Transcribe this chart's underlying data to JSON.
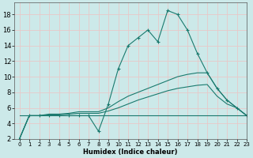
{
  "title": "",
  "xlabel": "Humidex (Indice chaleur)",
  "ylabel": "",
  "background_color": "#cce9e9",
  "grid_color": "#e8c8c8",
  "line_color": "#1a7a6e",
  "xlim": [
    -0.5,
    23
  ],
  "ylim": [
    2,
    19.5
  ],
  "yticks": [
    2,
    4,
    6,
    8,
    10,
    12,
    14,
    16,
    18
  ],
  "xticks": [
    0,
    1,
    2,
    3,
    4,
    5,
    6,
    7,
    8,
    9,
    10,
    11,
    12,
    13,
    14,
    15,
    16,
    17,
    18,
    19,
    20,
    21,
    22,
    23
  ],
  "series": [
    {
      "x": [
        0,
        1,
        2,
        3,
        4,
        5,
        6,
        7,
        8,
        9,
        10,
        11,
        12,
        13,
        14,
        15,
        16,
        17,
        18,
        19,
        20,
        21,
        22,
        23
      ],
      "y": [
        2,
        5,
        5,
        5,
        5,
        5,
        5,
        5,
        3,
        6.5,
        11,
        14,
        15,
        16,
        14.5,
        18.5,
        18,
        16,
        13,
        10.5,
        8.5,
        7,
        6,
        5
      ],
      "marker": true
    },
    {
      "x": [
        0,
        1,
        2,
        3,
        4,
        5,
        6,
        7,
        8,
        9,
        10,
        11,
        12,
        13,
        14,
        15,
        16,
        17,
        18,
        19,
        20,
        21,
        22,
        23
      ],
      "y": [
        2,
        5,
        5,
        5.2,
        5.2,
        5.3,
        5.5,
        5.5,
        5.5,
        6.0,
        6.8,
        7.5,
        8.0,
        8.5,
        9.0,
        9.5,
        10.0,
        10.3,
        10.5,
        10.5,
        8.5,
        7,
        6,
        5
      ],
      "marker": false
    },
    {
      "x": [
        0,
        1,
        2,
        3,
        4,
        5,
        6,
        7,
        8,
        9,
        10,
        11,
        12,
        13,
        14,
        15,
        16,
        17,
        18,
        19,
        20,
        21,
        22,
        23
      ],
      "y": [
        2,
        5,
        5,
        5.1,
        5.1,
        5.2,
        5.3,
        5.3,
        5.3,
        5.6,
        6.0,
        6.5,
        7.0,
        7.4,
        7.8,
        8.2,
        8.5,
        8.7,
        8.9,
        9.0,
        7.5,
        6.5,
        6.0,
        5.0
      ],
      "marker": false
    },
    {
      "x": [
        0,
        23
      ],
      "y": [
        5,
        5
      ],
      "marker": false
    }
  ]
}
